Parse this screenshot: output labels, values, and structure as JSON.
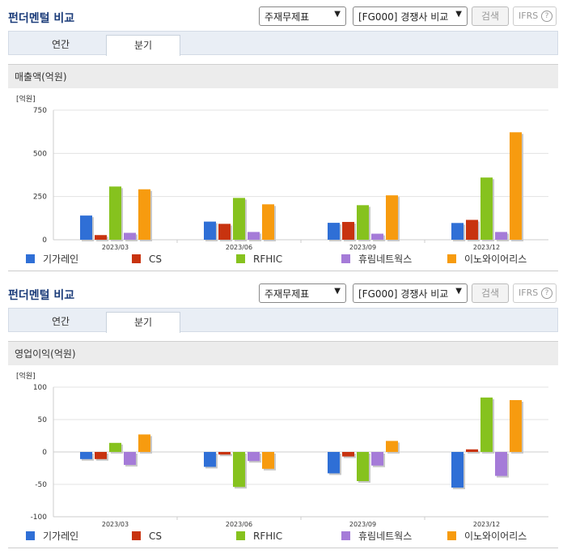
{
  "panels": [
    {
      "title": "펀더멘털 비교",
      "select1": "주재무제표",
      "select2": "[FG000] 경쟁사 비교",
      "search_label": "검색",
      "ifrs_label": "IFRS",
      "tabs": [
        "연간",
        "분기"
      ],
      "active_tab": 1,
      "section_title": "매출액(억원)"
    },
    {
      "title": "펀더멘털 비교",
      "select1": "주재무제표",
      "select2": "[FG000] 경쟁사 비교",
      "search_label": "검색",
      "ifrs_label": "IFRS",
      "tabs": [
        "연간",
        "분기"
      ],
      "active_tab": 1,
      "section_title": "영업이익(억원)"
    }
  ],
  "colors": {
    "기가레인": "#2f6fd6",
    "CS": "#c8330f",
    "RFHIC": "#86c21e",
    "휴림네트웍스": "#a57bd8",
    "이노와이어리스": "#f79b0f"
  },
  "chart_data": [
    {
      "type": "bar",
      "title": "매출액(억원)",
      "unit_label": "[억원]",
      "categories": [
        "2023/03",
        "2023/06",
        "2023/09",
        "2023/12"
      ],
      "ylim": [
        0,
        750
      ],
      "yticks": [
        0,
        250,
        500,
        750
      ],
      "grid": true,
      "legend": "bottom",
      "series": [
        {
          "name": "기가레인",
          "values": [
            140,
            105,
            98,
            97
          ]
        },
        {
          "name": "CS",
          "values": [
            27,
            92,
            103,
            115
          ]
        },
        {
          "name": "RFHIC",
          "values": [
            308,
            242,
            200,
            360
          ]
        },
        {
          "name": "휴림네트웍스",
          "values": [
            40,
            45,
            35,
            45
          ]
        },
        {
          "name": "이노와이어리스",
          "values": [
            292,
            205,
            257,
            622
          ]
        }
      ]
    },
    {
      "type": "bar",
      "title": "영업이익(억원)",
      "unit_label": "[억원]",
      "categories": [
        "2023/03",
        "2023/06",
        "2023/09",
        "2023/12"
      ],
      "ylim": [
        -100,
        100
      ],
      "yticks": [
        -100,
        -50,
        0,
        50,
        100
      ],
      "grid": true,
      "legend": "bottom",
      "series": [
        {
          "name": "기가레인",
          "values": [
            -11,
            -23,
            -33,
            -55
          ]
        },
        {
          "name": "CS",
          "values": [
            -11,
            -4,
            -7,
            4
          ]
        },
        {
          "name": "RFHIC",
          "values": [
            14,
            -54,
            -45,
            84
          ]
        },
        {
          "name": "휴림네트웍스",
          "values": [
            -20,
            -14,
            -21,
            -37
          ]
        },
        {
          "name": "이노와이어리스",
          "values": [
            27,
            -26,
            17,
            80
          ]
        }
      ]
    }
  ]
}
